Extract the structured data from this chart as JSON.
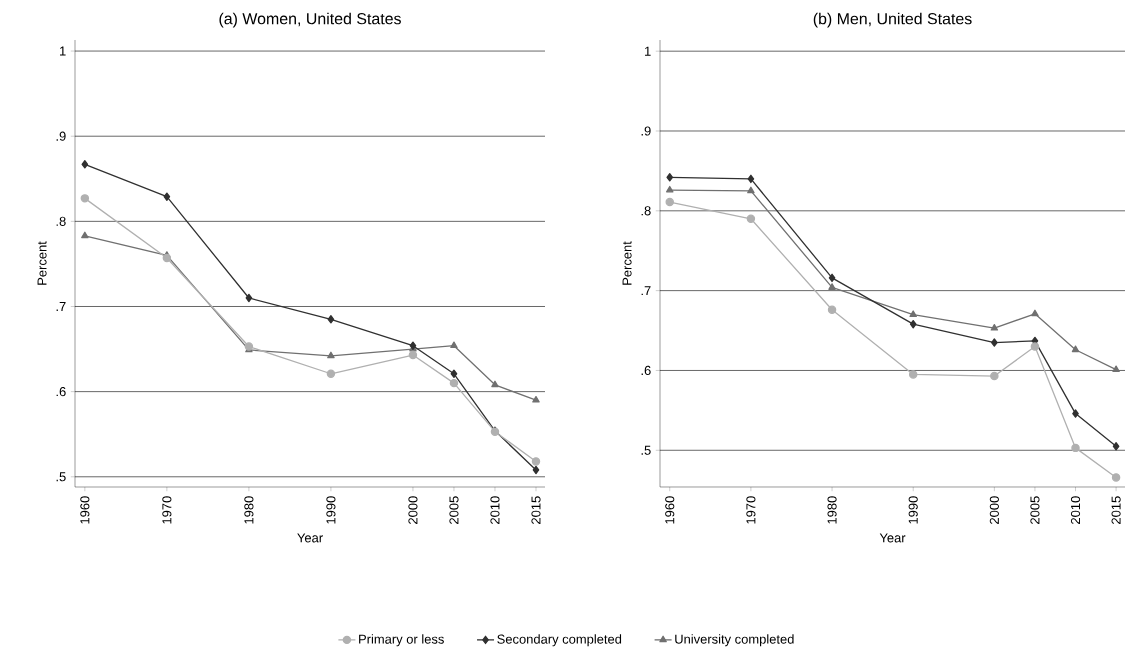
{
  "chart_data": [
    {
      "type": "line",
      "title": "(a) Women, United States",
      "xlabel": "Year",
      "ylabel": "Percent",
      "x": [
        1960,
        1970,
        1980,
        1990,
        2000,
        2005,
        2010,
        2015
      ],
      "xlim": [
        1958.8,
        2016.1
      ],
      "xticks": [
        1960,
        1970,
        1980,
        1990,
        2000,
        2005,
        2010,
        2015
      ],
      "ylim": [
        0.488,
        1.013
      ],
      "yticks": [
        {
          "value": 0.5,
          "label": ".5"
        },
        {
          "value": 0.6,
          "label": ".6"
        },
        {
          "value": 0.7,
          "label": ".7"
        },
        {
          "value": 0.8,
          "label": ".8"
        },
        {
          "value": 0.9,
          "label": ".9"
        },
        1
      ],
      "grid": "y",
      "legend": "bottom",
      "series": [
        {
          "name": "Primary or less",
          "color": "#b0b0b0",
          "marker": "circle",
          "values": [
            0.827,
            0.757,
            0.653,
            0.621,
            0.643,
            0.61,
            0.553,
            0.518
          ]
        },
        {
          "name": "Secondary completed",
          "color": "#303030",
          "marker": "diamond",
          "values": [
            0.867,
            0.829,
            0.71,
            0.685,
            0.654,
            0.621,
            0.554,
            0.508
          ]
        },
        {
          "name": "University completed",
          "color": "#707070",
          "marker": "triangle",
          "values": [
            0.783,
            0.76,
            0.649,
            0.642,
            0.65,
            0.654,
            0.608,
            0.59
          ]
        }
      ]
    },
    {
      "type": "line",
      "title": "(b) Men, United States",
      "xlabel": "Year",
      "ylabel": "Percent",
      "x": [
        1960,
        1970,
        1980,
        1990,
        2000,
        2005,
        2010,
        2015
      ],
      "xlim": [
        1958.8,
        2016.1
      ],
      "xticks": [
        1960,
        1970,
        1980,
        1990,
        2000,
        2005,
        2010,
        2015
      ],
      "ylim": [
        0.454,
        1.014
      ],
      "yticks": [
        {
          "value": 0.5,
          "label": ".5"
        },
        {
          "value": 0.6,
          "label": ".6"
        },
        {
          "value": 0.7,
          "label": ".7"
        },
        {
          "value": 0.8,
          "label": ".8"
        },
        {
          "value": 0.9,
          "label": ".9"
        },
        1
      ],
      "grid": "y",
      "series": [
        {
          "color": "#b0b0b0",
          "marker": "circle",
          "values": [
            0.811,
            0.79,
            0.676,
            0.595,
            0.593,
            0.63,
            0.503,
            0.466
          ]
        },
        {
          "color": "#303030",
          "marker": "diamond",
          "values": [
            0.842,
            0.84,
            0.716,
            0.658,
            0.635,
            0.637,
            0.546,
            0.505
          ]
        },
        {
          "color": "#707070",
          "marker": "triangle",
          "values": [
            0.826,
            0.825,
            0.704,
            0.67,
            0.653,
            0.671,
            0.626,
            0.601
          ]
        }
      ]
    }
  ]
}
